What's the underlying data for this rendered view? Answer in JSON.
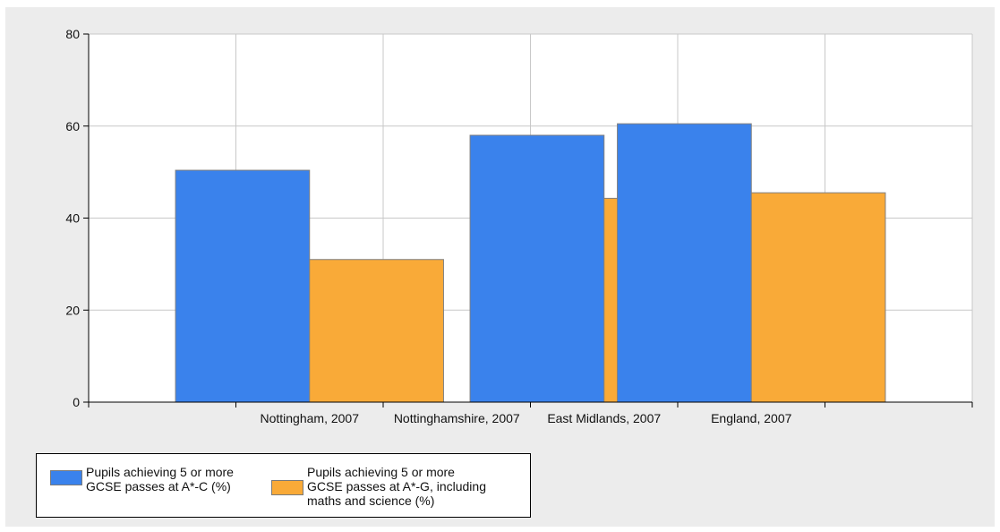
{
  "chart_data": {
    "type": "bar",
    "categories": [
      "",
      "Nottingham, 2007",
      "Nottinghamshire, 2007",
      "East Midlands, 2007",
      "England, 2007",
      ""
    ],
    "series": [
      {
        "name": "Pupils achieving 5 or more GCSE passes at A*-C (%)",
        "legend_label": "Pupils achieving 5 or more\nGCSE passes at A*-C (%)",
        "color": "#3a82ec",
        "values": [
          null,
          50.4,
          null,
          58.0,
          60.5,
          null
        ]
      },
      {
        "name": "Pupils achieving 5 or more GCSE passes at A*-G, including maths and science (%)",
        "legend_label": "Pupils achieving 5 or more\nGCSE passes at A*-G, including\nmaths and science (%)",
        "color": "#f9aa38",
        "values": [
          null,
          31.0,
          null,
          44.3,
          45.5,
          null
        ]
      }
    ],
    "ylim": [
      0,
      80
    ],
    "yticks": [
      0,
      20,
      40,
      60,
      80
    ],
    "title": "",
    "xlabel": "",
    "ylabel": "",
    "grid": true,
    "legend_position": "bottom-left"
  }
}
